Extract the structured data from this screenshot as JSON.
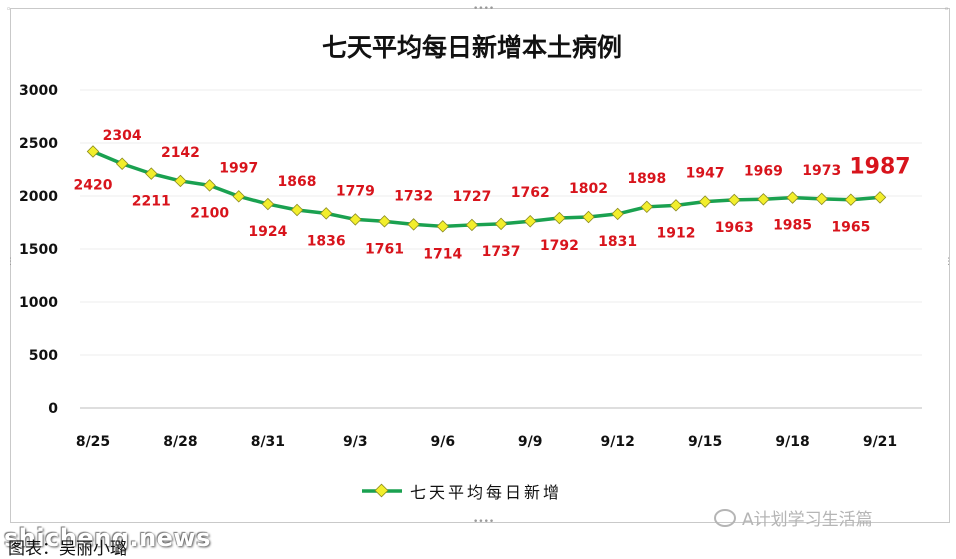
{
  "chart_data": {
    "type": "line",
    "title": "七天平均每日新增本土病例",
    "x": [
      "8/25",
      "8/26",
      "8/27",
      "8/28",
      "8/29",
      "8/30",
      "8/31",
      "9/1",
      "9/2",
      "9/3",
      "9/4",
      "9/5",
      "9/6",
      "9/7",
      "9/8",
      "9/9",
      "9/10",
      "9/11",
      "9/12",
      "9/13",
      "9/14",
      "9/15",
      "9/16",
      "9/17",
      "9/18",
      "9/19",
      "9/20",
      "9/21"
    ],
    "x_tick_labels": [
      "8/25",
      "8/28",
      "8/31",
      "9/3",
      "9/6",
      "9/9",
      "9/12",
      "9/15",
      "9/18",
      "9/21"
    ],
    "series": [
      {
        "name": "七天平均每日新增",
        "values": [
          2420,
          2304,
          2211,
          2142,
          2100,
          1997,
          1924,
          1868,
          1836,
          1779,
          1761,
          1732,
          1714,
          1727,
          1737,
          1762,
          1792,
          1802,
          1831,
          1898,
          1912,
          1947,
          1963,
          1969,
          1985,
          1973,
          1965,
          1987
        ],
        "color": "#1aa150",
        "marker_color": "#f2ee2c"
      }
    ],
    "y_ticks": [
      "0",
      "500",
      "1000",
      "1500",
      "2000",
      "2500",
      "3000"
    ],
    "ylim": [
      0,
      3000
    ],
    "xlabel": "",
    "ylabel": "",
    "grid": true,
    "legend_position": "bottom",
    "label_color": "#d8141c"
  },
  "watermark": "A计划学习生活篇",
  "site_mark": "shicheng.news",
  "caption": "图表：吴丽小璐"
}
